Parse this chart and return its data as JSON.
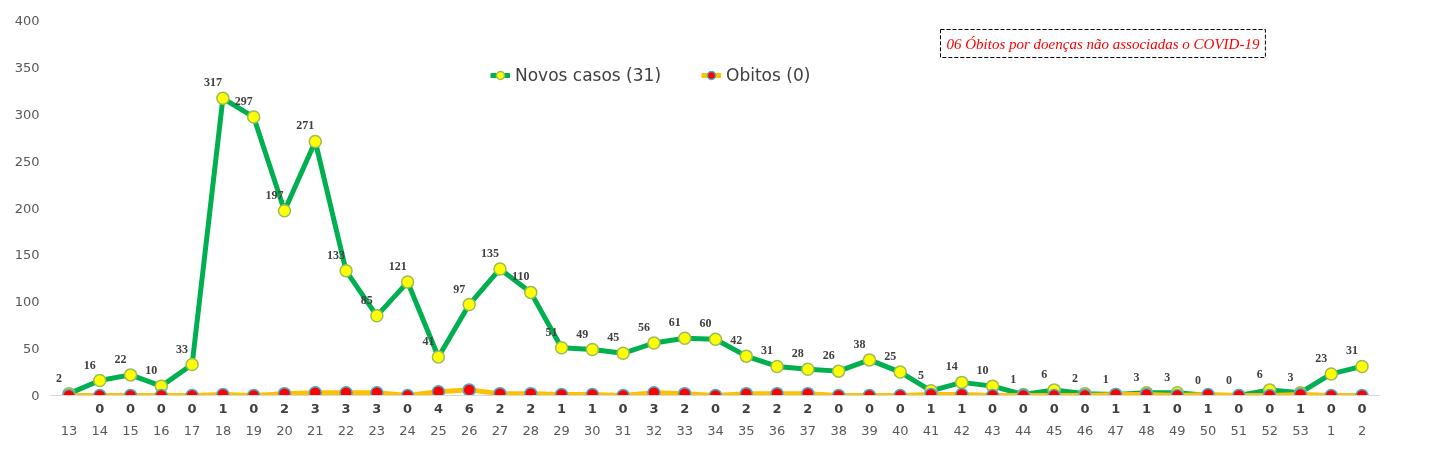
{
  "chart_data": {
    "type": "line",
    "categories": [
      "13",
      "14",
      "15",
      "16",
      "17",
      "18",
      "19",
      "20",
      "21",
      "22",
      "23",
      "24",
      "25",
      "26",
      "27",
      "28",
      "29",
      "30",
      "31",
      "32",
      "33",
      "34",
      "35",
      "36",
      "37",
      "38",
      "39",
      "40",
      "41",
      "42",
      "43",
      "44",
      "45",
      "46",
      "47",
      "48",
      "49",
      "50",
      "51",
      "52",
      "53",
      "1",
      "2"
    ],
    "series": [
      {
        "name": "Novos casos (31)",
        "color": "#00b050",
        "values": [
          2,
          16,
          22,
          10,
          33,
          317,
          297,
          197,
          271,
          133,
          85,
          121,
          41,
          97,
          135,
          110,
          51,
          49,
          45,
          56,
          61,
          60,
          42,
          31,
          28,
          26,
          38,
          25,
          5,
          14,
          10,
          1,
          6,
          2,
          1,
          3,
          3,
          0,
          0,
          6,
          3,
          23,
          31
        ]
      },
      {
        "name": "Obitos (0)",
        "color": "#ffc000",
        "values": [
          0,
          0,
          0,
          0,
          0,
          1,
          0,
          2,
          3,
          3,
          3,
          0,
          4,
          6,
          2,
          2,
          1,
          1,
          0,
          3,
          2,
          0,
          2,
          2,
          2,
          0,
          0,
          0,
          1,
          1,
          0,
          0,
          0,
          0,
          1,
          1,
          0,
          1,
          0,
          0,
          1,
          0,
          0
        ],
        "value_labels": [
          null,
          "0",
          "0",
          "0",
          "0",
          "1",
          "0",
          "2",
          "3",
          "3",
          "3",
          "0",
          "4",
          "6",
          "2",
          "2",
          "1",
          "1",
          "0",
          "3",
          "2",
          "0",
          "2",
          "2",
          "2",
          "0",
          "0",
          "0",
          "1",
          "1",
          "0",
          "0",
          "0",
          "0",
          "1",
          "1",
          "0",
          "1",
          "0",
          "0",
          "1",
          "0",
          "0"
        ]
      }
    ],
    "data_labels": true,
    "ylim": [
      0,
      400
    ],
    "yticks": [
      0,
      50,
      100,
      150,
      200,
      250,
      300,
      350,
      400
    ],
    "grid": false,
    "legend": "top",
    "marker": "circle",
    "annotations": [
      "06 Óbitos por doenças não associadas o COVID-19",
      "0"
    ]
  }
}
